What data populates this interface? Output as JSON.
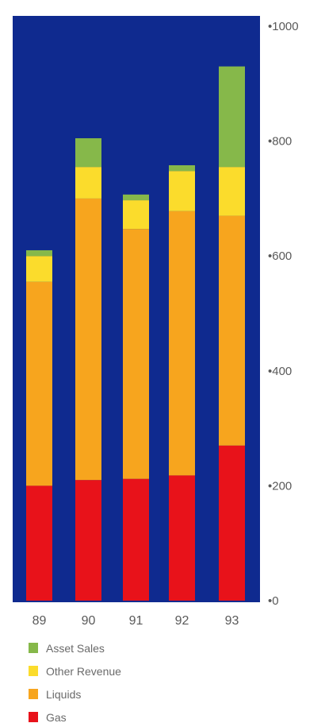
{
  "chart_data": {
    "type": "bar",
    "stacked": true,
    "categories": [
      "89",
      "90",
      "91",
      "92",
      "93"
    ],
    "series": [
      {
        "name": "Gas",
        "color": "#e8121a",
        "values": [
          200,
          210,
          212,
          218,
          270
        ]
      },
      {
        "name": "Liquids",
        "color": "#f7a51e",
        "values": [
          355,
          490,
          435,
          460,
          400
        ]
      },
      {
        "name": "Other Revenue",
        "color": "#fbdc2c",
        "values": [
          45,
          55,
          50,
          70,
          85
        ]
      },
      {
        "name": "Asset Sales",
        "color": "#86b84a",
        "values": [
          10,
          50,
          10,
          10,
          175
        ]
      }
    ],
    "yticks": [
      {
        "value": 0,
        "label": "•0"
      },
      {
        "value": 200,
        "label": "•200"
      },
      {
        "value": 400,
        "label": "•400"
      },
      {
        "value": 600,
        "label": "•600"
      },
      {
        "value": 800,
        "label": "•800"
      },
      {
        "value": 1000,
        "label": "•1000"
      }
    ],
    "ylim": [
      0,
      1000
    ],
    "y_axis_side": "right",
    "plot_background": "#0f2a8f",
    "legend_position": "bottom-left",
    "grid": false
  }
}
